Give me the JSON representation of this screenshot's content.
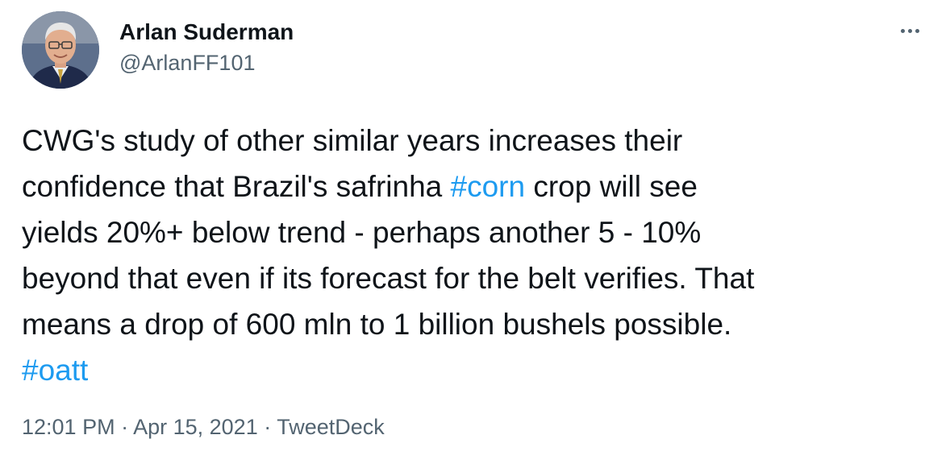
{
  "author": {
    "display_name": "Arlan Suderman",
    "handle": "@ArlanFF101",
    "avatar_icon": "person-portrait-icon"
  },
  "more_icon": "more-horizontal-icon",
  "tweet": {
    "lines": [
      {
        "segments": [
          {
            "text": "CWG's study of other similar years increases their"
          }
        ]
      },
      {
        "segments": [
          {
            "text": "confidence that Brazil's safrinha "
          },
          {
            "text": "#corn",
            "hashtag": true
          },
          {
            "text": " crop will see"
          }
        ]
      },
      {
        "segments": [
          {
            "text": "yields 20%+ below trend - perhaps another 5 - 10%"
          }
        ]
      },
      {
        "segments": [
          {
            "text": "beyond that even if its forecast for the belt verifies. That"
          }
        ]
      },
      {
        "segments": [
          {
            "text": "means a drop of 600 mln to 1 billion bushels possible."
          }
        ]
      },
      {
        "segments": [
          {
            "text": "#oatt",
            "hashtag": true
          }
        ]
      }
    ]
  },
  "meta": {
    "time": "12:01 PM",
    "separator": " · ",
    "date": "Apr 15, 2021",
    "source": "TweetDeck"
  },
  "colors": {
    "text": "#0f1419",
    "secondary": "#536471",
    "link": "#1d9bf0"
  }
}
